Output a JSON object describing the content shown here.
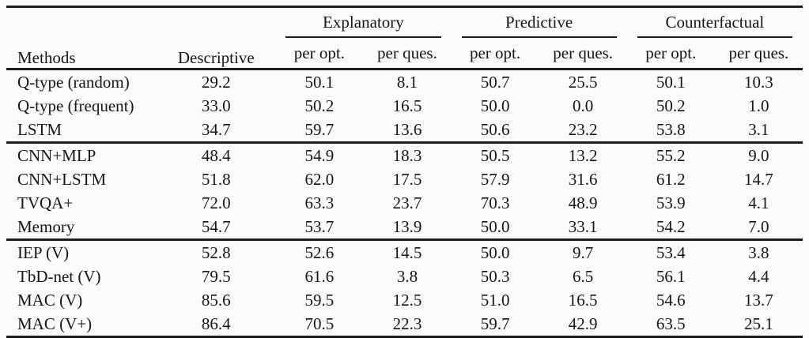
{
  "table": {
    "header": {
      "methods": "Methods",
      "descriptive": "Descriptive",
      "groups": [
        {
          "label": "Explanatory",
          "sub_opt": "per opt.",
          "sub_ques": "per ques."
        },
        {
          "label": "Predictive",
          "sub_opt": "per opt.",
          "sub_ques": "per ques."
        },
        {
          "label": "Counterfactual",
          "sub_opt": "per opt.",
          "sub_ques": "per ques."
        }
      ]
    },
    "groups": [
      {
        "rows": [
          {
            "method": "Q-type (random)",
            "v": [
              "29.2",
              "50.1",
              "8.1",
              "50.7",
              "25.5",
              "50.1",
              "10.3"
            ]
          },
          {
            "method": "Q-type (frequent)",
            "v": [
              "33.0",
              "50.2",
              "16.5",
              "50.0",
              "0.0",
              "50.2",
              "1.0"
            ]
          },
          {
            "method": "LSTM",
            "v": [
              "34.7",
              "59.7",
              "13.6",
              "50.6",
              "23.2",
              "53.8",
              "3.1"
            ]
          }
        ]
      },
      {
        "rows": [
          {
            "method": "CNN+MLP",
            "v": [
              "48.4",
              "54.9",
              "18.3",
              "50.5",
              "13.2",
              "55.2",
              "9.0"
            ]
          },
          {
            "method": "CNN+LSTM",
            "v": [
              "51.8",
              "62.0",
              "17.5",
              "57.9",
              "31.6",
              "61.2",
              "14.7"
            ]
          },
          {
            "method": "TVQA+",
            "v": [
              "72.0",
              "63.3",
              "23.7",
              "70.3",
              "48.9",
              "53.9",
              "4.1"
            ]
          },
          {
            "method": "Memory",
            "v": [
              "54.7",
              "53.7",
              "13.9",
              "50.0",
              "33.1",
              "54.2",
              "7.0"
            ]
          }
        ]
      },
      {
        "rows": [
          {
            "method": "IEP (V)",
            "v": [
              "52.8",
              "52.6",
              "14.5",
              "50.0",
              "9.7",
              "53.4",
              "3.8"
            ]
          },
          {
            "method": "TbD-net (V)",
            "v": [
              "79.5",
              "61.6",
              "3.8",
              "50.3",
              "6.5",
              "56.1",
              "4.4"
            ]
          },
          {
            "method": "MAC (V)",
            "v": [
              "85.6",
              "59.5",
              "12.5",
              "51.0",
              "16.5",
              "54.6",
              "13.7"
            ]
          },
          {
            "method": "MAC (V+)",
            "v": [
              "86.4",
              "70.5",
              "22.3",
              "59.7",
              "42.9",
              "63.5",
              "25.1"
            ]
          }
        ]
      }
    ]
  }
}
